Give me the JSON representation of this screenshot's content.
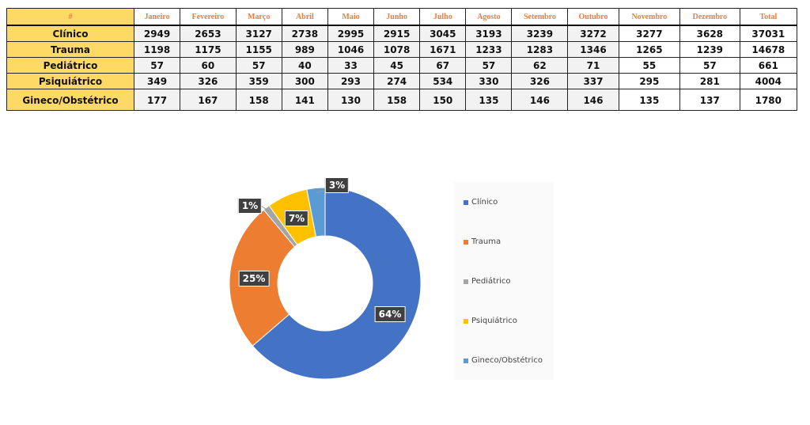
{
  "table": {
    "corner": "#",
    "headers": [
      "Janeiro",
      "Fevereiro",
      "Março",
      "Abril",
      "Maio",
      "Junho",
      "Julho",
      "Agosto",
      "Setembro",
      "Outubro",
      "Novembro",
      "Dezembro",
      "Total"
    ],
    "rows": [
      {
        "label": "Clínico",
        "values": [
          "2949",
          "2653",
          "3127",
          "2738",
          "2995",
          "2915",
          "3045",
          "3193",
          "3239",
          "3272",
          "3277",
          "3628",
          "37031"
        ]
      },
      {
        "label": "Trauma",
        "values": [
          "1198",
          "1175",
          "1155",
          "989",
          "1046",
          "1078",
          "1671",
          "1233",
          "1283",
          "1346",
          "1265",
          "1239",
          "14678"
        ]
      },
      {
        "label": "Pediátrico",
        "values": [
          "57",
          "60",
          "57",
          "40",
          "33",
          "45",
          "67",
          "57",
          "62",
          "71",
          "55",
          "57",
          "661"
        ]
      },
      {
        "label": "Psiquiátrico",
        "values": [
          "349",
          "326",
          "359",
          "300",
          "293",
          "274",
          "534",
          "330",
          "326",
          "337",
          "295",
          "281",
          "4004"
        ]
      },
      {
        "label": "Gineco/Obstétrico",
        "values": [
          "177",
          "167",
          "158",
          "141",
          "130",
          "158",
          "150",
          "135",
          "146",
          "146",
          "135",
          "137",
          "1780"
        ]
      }
    ]
  },
  "chart_data": {
    "type": "pie",
    "donut": true,
    "categories": [
      "Clínico",
      "Trauma",
      "Pediátrico",
      "Psiquiátrico",
      "Gineco/Obstétrico"
    ],
    "values": [
      37031,
      14678,
      661,
      4004,
      1780
    ],
    "labels": [
      "64%",
      "25%",
      "1%",
      "7%",
      "3%"
    ],
    "colors": [
      "#4472c4",
      "#ed7d31",
      "#a5a5a5",
      "#ffc000",
      "#5b9bd5"
    ],
    "legend": "right"
  }
}
